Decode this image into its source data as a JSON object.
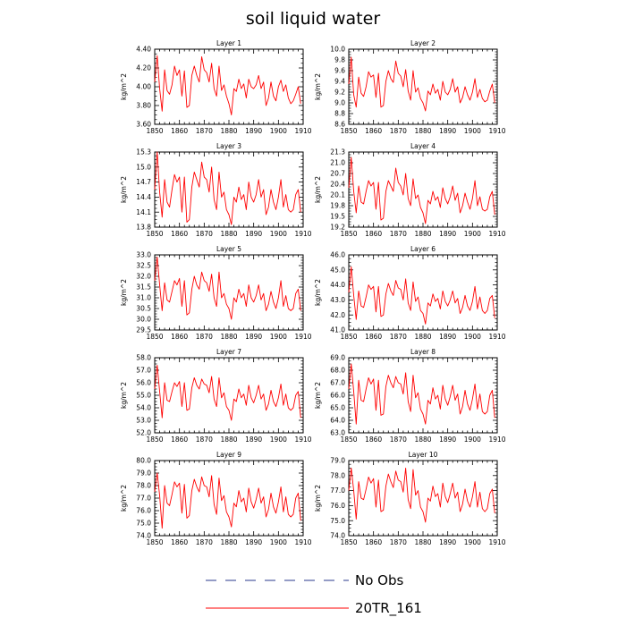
{
  "figure": {
    "title": "soil liquid water",
    "legend": [
      {
        "label": "No Obs",
        "color": "#2a3a8c",
        "style": "dashed"
      },
      {
        "label": "20TR_161",
        "color": "#ff0000",
        "style": "solid"
      }
    ]
  },
  "chart_data": [
    {
      "type": "line",
      "title": "Layer 1",
      "ylabel": "kg/m^2",
      "xlim": [
        1850,
        1910
      ],
      "xticks": [
        1850,
        1860,
        1870,
        1880,
        1890,
        1900,
        1910
      ],
      "ylim": [
        3.6,
        4.4
      ],
      "yticks": [
        "3.60",
        "3.80",
        "4.00",
        "4.20",
        "4.40"
      ],
      "series": [
        {
          "name": "20TR_161",
          "color": "#ff0000",
          "x_start": 1850,
          "values": [
            4.05,
            4.33,
            3.98,
            3.74,
            4.18,
            3.96,
            3.92,
            4.02,
            4.22,
            4.12,
            4.18,
            3.9,
            4.17,
            3.78,
            3.8,
            4.12,
            4.22,
            4.12,
            4.05,
            4.32,
            4.18,
            4.15,
            4.05,
            4.25,
            3.98,
            3.9,
            4.22,
            3.96,
            4.02,
            3.9,
            3.82,
            3.7,
            3.98,
            3.95,
            4.08,
            3.98,
            4.03,
            3.88,
            4.08,
            4.0,
            3.98,
            4.02,
            4.12,
            3.98,
            4.05,
            3.8,
            3.88,
            4.05,
            3.9,
            3.85,
            4.0,
            4.07,
            3.95,
            4.02,
            3.88,
            3.82,
            3.85,
            3.92,
            4.0,
            3.82
          ]
        }
      ]
    },
    {
      "type": "line",
      "title": "Layer 2",
      "ylabel": "kg/m^2",
      "xlim": [
        1850,
        1910
      ],
      "xticks": [
        1850,
        1860,
        1870,
        1880,
        1890,
        1900,
        1910
      ],
      "ylim": [
        8.6,
        10.0
      ],
      "yticks": [
        "8.6",
        "8.8",
        "9.0",
        "9.2",
        "9.4",
        "9.6",
        "9.8",
        "10.0"
      ],
      "series": [
        {
          "name": "20TR_161",
          "color": "#ff0000",
          "x_start": 1850,
          "values": [
            9.35,
            9.85,
            9.15,
            8.92,
            9.48,
            9.18,
            9.12,
            9.3,
            9.58,
            9.48,
            9.52,
            9.1,
            9.55,
            8.92,
            8.95,
            9.4,
            9.6,
            9.45,
            9.38,
            9.78,
            9.55,
            9.5,
            9.3,
            9.62,
            9.22,
            9.05,
            9.6,
            9.2,
            9.28,
            9.08,
            9.0,
            8.85,
            9.22,
            9.15,
            9.35,
            9.18,
            9.25,
            9.05,
            9.4,
            9.2,
            9.15,
            9.25,
            9.45,
            9.2,
            9.3,
            9.0,
            9.1,
            9.3,
            9.15,
            9.05,
            9.2,
            9.45,
            9.1,
            9.25,
            9.08,
            9.02,
            9.05,
            9.22,
            9.35,
            9.0
          ]
        }
      ]
    },
    {
      "type": "line",
      "title": "Layer 3",
      "ylabel": "kg/m^2",
      "xlim": [
        1850,
        1910
      ],
      "xticks": [
        1850,
        1860,
        1870,
        1880,
        1890,
        1900,
        1910
      ],
      "ylim": [
        13.8,
        15.3
      ],
      "yticks": [
        "13.8",
        "14.1",
        "14.4",
        "14.7",
        "15.0",
        "15.3"
      ],
      "series": [
        {
          "name": "20TR_161",
          "color": "#ff0000",
          "x_start": 1850,
          "values": [
            14.55,
            15.3,
            14.5,
            14.0,
            14.75,
            14.3,
            14.2,
            14.55,
            14.85,
            14.7,
            14.8,
            14.1,
            14.8,
            13.9,
            13.95,
            14.6,
            14.9,
            14.75,
            14.6,
            15.1,
            14.8,
            14.75,
            14.5,
            15.0,
            14.35,
            14.15,
            14.9,
            14.4,
            14.5,
            14.15,
            14.05,
            13.85,
            14.4,
            14.3,
            14.6,
            14.35,
            14.45,
            14.15,
            14.7,
            14.4,
            14.3,
            14.45,
            14.75,
            14.4,
            14.55,
            14.05,
            14.2,
            14.55,
            14.3,
            14.15,
            14.4,
            14.75,
            14.2,
            14.45,
            14.15,
            14.1,
            14.15,
            14.45,
            14.55,
            14.1
          ]
        }
      ]
    },
    {
      "type": "line",
      "title": "Layer 4",
      "ylabel": "kg/m^2",
      "xlim": [
        1850,
        1910
      ],
      "xticks": [
        1850,
        1860,
        1870,
        1880,
        1890,
        1900,
        1910
      ],
      "ylim": [
        19.2,
        21.3
      ],
      "yticks": [
        "19.2",
        "19.5",
        "19.8",
        "20.1",
        "20.4",
        "20.7",
        "21.0",
        "21.3"
      ],
      "series": [
        {
          "name": "20TR_161",
          "color": "#ff0000",
          "x_start": 1850,
          "values": [
            20.3,
            21.15,
            20.2,
            19.6,
            20.35,
            19.9,
            19.85,
            20.2,
            20.5,
            20.35,
            20.45,
            19.7,
            20.45,
            19.4,
            19.45,
            20.2,
            20.5,
            20.35,
            20.2,
            20.85,
            20.45,
            20.35,
            20.1,
            20.7,
            20.0,
            19.8,
            20.55,
            20.0,
            20.1,
            19.75,
            19.6,
            19.3,
            19.95,
            19.85,
            20.2,
            19.95,
            20.05,
            19.75,
            20.3,
            20.0,
            19.85,
            20.05,
            20.35,
            19.95,
            20.15,
            19.6,
            19.8,
            20.15,
            19.9,
            19.7,
            20.0,
            20.5,
            19.8,
            20.05,
            19.7,
            19.65,
            19.7,
            20.05,
            20.2,
            19.55
          ]
        }
      ]
    },
    {
      "type": "line",
      "title": "Layer 5",
      "ylabel": "kg/m^2",
      "xlim": [
        1850,
        1910
      ],
      "xticks": [
        1850,
        1860,
        1870,
        1880,
        1890,
        1900,
        1910
      ],
      "ylim": [
        29.5,
        33.0
      ],
      "yticks": [
        "29.5",
        "30.0",
        "30.5",
        "31.0",
        "31.5",
        "32.0",
        "32.5",
        "33.0"
      ],
      "series": [
        {
          "name": "20TR_161",
          "color": "#ff0000",
          "x_start": 1850,
          "values": [
            31.8,
            32.9,
            31.6,
            30.4,
            31.7,
            30.9,
            30.8,
            31.3,
            31.8,
            31.6,
            31.9,
            30.6,
            31.8,
            30.2,
            30.3,
            31.4,
            32.0,
            31.6,
            31.4,
            32.2,
            31.8,
            31.7,
            31.3,
            32.1,
            31.0,
            30.6,
            32.2,
            31.0,
            31.2,
            30.7,
            30.5,
            30.0,
            31.0,
            30.8,
            31.4,
            31.0,
            31.2,
            30.6,
            31.6,
            31.0,
            30.8,
            31.1,
            31.6,
            30.9,
            31.2,
            30.4,
            30.7,
            31.3,
            30.8,
            30.5,
            31.0,
            31.8,
            30.6,
            31.1,
            30.5,
            30.4,
            30.5,
            31.2,
            31.4,
            30.4
          ]
        }
      ]
    },
    {
      "type": "line",
      "title": "Layer 6",
      "ylabel": "kg/m^2",
      "xlim": [
        1850,
        1910
      ],
      "xticks": [
        1850,
        1860,
        1870,
        1880,
        1890,
        1900,
        1910
      ],
      "ylim": [
        41.0,
        46.0
      ],
      "yticks": [
        "41.0",
        "42.0",
        "43.0",
        "44.0",
        "45.0",
        "46.0"
      ],
      "series": [
        {
          "name": "20TR_161",
          "color": "#ff0000",
          "x_start": 1850,
          "values": [
            43.5,
            45.2,
            43.3,
            41.7,
            43.6,
            42.6,
            42.5,
            43.2,
            44.0,
            43.7,
            43.9,
            42.2,
            43.9,
            41.9,
            42.0,
            43.4,
            44.1,
            43.6,
            43.3,
            44.3,
            43.8,
            43.7,
            43.0,
            44.4,
            42.8,
            42.3,
            44.2,
            42.9,
            43.2,
            42.3,
            42.1,
            41.4,
            42.8,
            42.6,
            43.4,
            42.9,
            43.1,
            42.4,
            43.6,
            42.9,
            42.6,
            43.0,
            43.6,
            42.8,
            43.1,
            42.1,
            42.5,
            43.3,
            42.6,
            42.3,
            42.9,
            43.9,
            42.4,
            43.2,
            42.3,
            42.1,
            42.3,
            43.1,
            43.3,
            41.8
          ]
        }
      ]
    },
    {
      "type": "line",
      "title": "Layer 7",
      "ylabel": "kg/m^2",
      "xlim": [
        1850,
        1910
      ],
      "xticks": [
        1850,
        1860,
        1870,
        1880,
        1890,
        1900,
        1910
      ],
      "ylim": [
        52.0,
        58.0
      ],
      "yticks": [
        "52.0",
        "53.0",
        "54.0",
        "55.0",
        "56.0",
        "57.0",
        "58.0"
      ],
      "series": [
        {
          "name": "20TR_161",
          "color": "#ff0000",
          "x_start": 1850,
          "values": [
            55.5,
            57.4,
            55.3,
            53.2,
            56.0,
            54.6,
            54.5,
            55.3,
            56.0,
            55.7,
            56.1,
            54.1,
            56.0,
            53.8,
            53.9,
            55.6,
            56.4,
            55.8,
            55.5,
            56.3,
            55.9,
            55.8,
            55.2,
            56.5,
            54.7,
            54.1,
            56.4,
            54.8,
            55.2,
            54.1,
            53.8,
            53.0,
            54.7,
            54.5,
            55.5,
            54.8,
            55.1,
            54.2,
            55.8,
            54.8,
            54.4,
            55.0,
            55.8,
            54.7,
            55.1,
            53.8,
            54.3,
            55.4,
            54.5,
            54.1,
            54.8,
            55.9,
            54.2,
            55.1,
            54.0,
            53.8,
            54.0,
            55.0,
            55.3,
            53.2
          ]
        }
      ]
    },
    {
      "type": "line",
      "title": "Layer 8",
      "ylabel": "kg/m^2",
      "xlim": [
        1850,
        1910
      ],
      "xticks": [
        1850,
        1860,
        1870,
        1880,
        1890,
        1900,
        1910
      ],
      "ylim": [
        63.0,
        69.0
      ],
      "yticks": [
        "63.0",
        "64.0",
        "65.0",
        "66.0",
        "67.0",
        "68.0",
        "69.0"
      ],
      "series": [
        {
          "name": "20TR_161",
          "color": "#ff0000",
          "x_start": 1850,
          "values": [
            66.5,
            68.5,
            66.3,
            63.7,
            67.2,
            65.6,
            65.5,
            66.5,
            67.4,
            66.9,
            67.3,
            64.8,
            67.2,
            64.4,
            64.5,
            66.7,
            67.6,
            67.0,
            66.6,
            67.5,
            67.0,
            66.9,
            66.1,
            67.8,
            65.5,
            64.7,
            67.6,
            65.8,
            66.2,
            64.9,
            64.5,
            63.7,
            65.6,
            65.3,
            66.6,
            65.7,
            66.0,
            64.9,
            66.8,
            65.7,
            65.2,
            65.9,
            66.8,
            65.6,
            66.1,
            64.5,
            65.1,
            66.4,
            65.3,
            64.8,
            65.7,
            66.9,
            64.9,
            66.1,
            64.7,
            64.5,
            64.7,
            66.0,
            66.4,
            64.2
          ]
        }
      ]
    },
    {
      "type": "line",
      "title": "Layer 9",
      "ylabel": "kg/m^2",
      "xlim": [
        1850,
        1910
      ],
      "xticks": [
        1850,
        1860,
        1870,
        1880,
        1890,
        1900,
        1910
      ],
      "ylim": [
        74.0,
        80.0
      ],
      "yticks": [
        "74.0",
        "75.0",
        "76.0",
        "77.0",
        "78.0",
        "79.0",
        "80.0"
      ],
      "series": [
        {
          "name": "20TR_161",
          "color": "#ff0000",
          "x_start": 1850,
          "values": [
            77.5,
            79.0,
            77.2,
            74.6,
            78.0,
            76.6,
            76.4,
            77.3,
            78.3,
            77.9,
            78.2,
            75.8,
            78.1,
            75.4,
            75.6,
            77.6,
            78.5,
            77.9,
            77.5,
            78.7,
            78.0,
            77.9,
            77.1,
            78.8,
            76.5,
            75.7,
            78.6,
            76.8,
            77.2,
            75.9,
            75.5,
            74.7,
            76.6,
            76.3,
            77.6,
            76.7,
            77.0,
            75.9,
            77.8,
            76.7,
            76.2,
            76.9,
            77.8,
            76.6,
            77.1,
            75.5,
            76.1,
            77.4,
            76.3,
            75.8,
            76.7,
            77.9,
            75.9,
            77.1,
            75.7,
            75.5,
            75.7,
            77.0,
            77.4,
            75.2
          ]
        }
      ]
    },
    {
      "type": "line",
      "title": "Layer 10",
      "ylabel": "kg/m^2",
      "xlim": [
        1850,
        1910
      ],
      "xticks": [
        1850,
        1860,
        1870,
        1880,
        1890,
        1900,
        1910
      ],
      "ylim": [
        74.0,
        79.0
      ],
      "yticks": [
        "74.0",
        "75.0",
        "76.0",
        "77.0",
        "78.0",
        "79.0"
      ],
      "series": [
        {
          "name": "20TR_161",
          "color": "#ff0000",
          "x_start": 1850,
          "values": [
            77.0,
            78.5,
            77.0,
            75.1,
            77.6,
            76.5,
            76.4,
            77.1,
            77.9,
            77.5,
            77.8,
            75.9,
            77.7,
            75.6,
            75.7,
            77.3,
            78.1,
            77.6,
            77.2,
            78.3,
            77.7,
            77.6,
            76.9,
            78.5,
            76.4,
            75.8,
            78.4,
            76.7,
            77.0,
            75.9,
            75.6,
            74.9,
            76.5,
            76.3,
            77.3,
            76.6,
            76.8,
            75.9,
            77.5,
            76.6,
            76.2,
            76.8,
            77.5,
            76.5,
            76.9,
            75.6,
            76.1,
            77.1,
            76.3,
            75.9,
            76.6,
            77.6,
            75.9,
            76.9,
            75.8,
            75.6,
            75.8,
            76.8,
            77.1,
            75.5
          ]
        }
      ]
    }
  ]
}
